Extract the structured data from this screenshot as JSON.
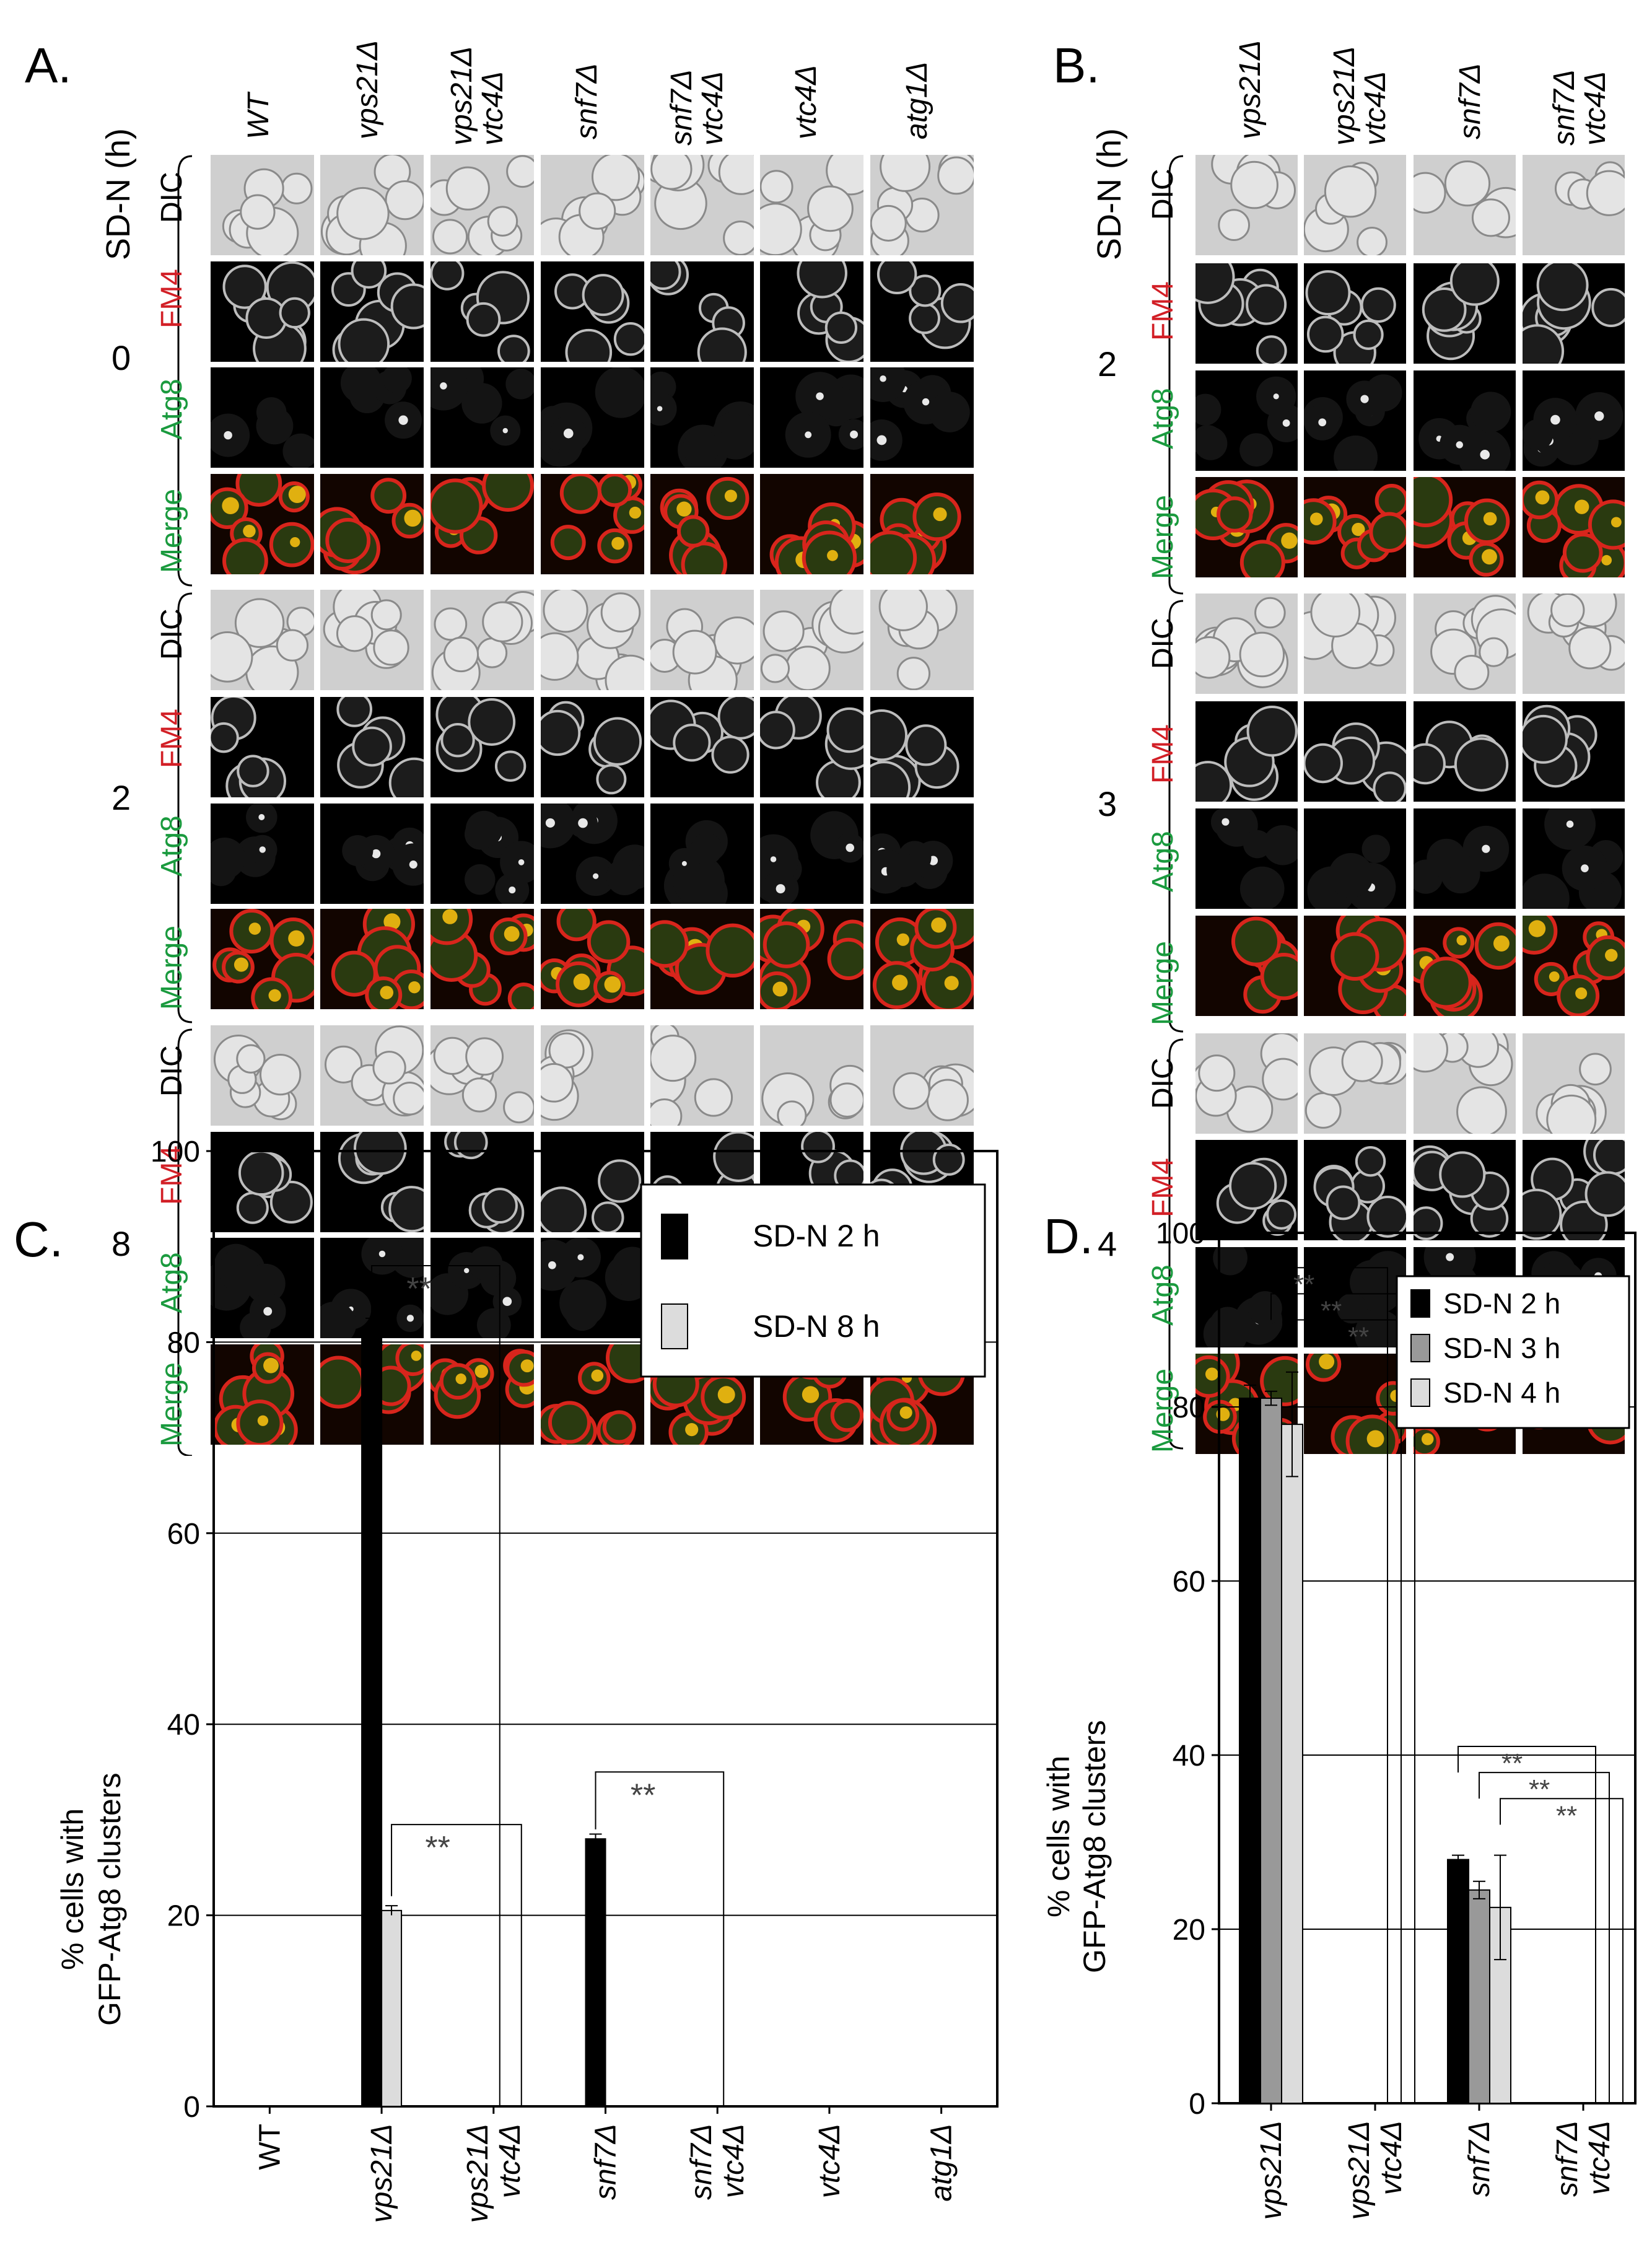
{
  "panel_a": {
    "letter": "A.",
    "axis_label": "SD-N (h)",
    "strains": [
      "WT",
      [
        "vps21Δ"
      ],
      [
        "vps21Δ",
        "vtc4Δ"
      ],
      [
        "snf7Δ"
      ],
      [
        "snf7Δ",
        "vtc4Δ"
      ],
      [
        "vtc4Δ"
      ],
      [
        "atg1Δ"
      ]
    ],
    "strain_labels": {
      "s1": "WT",
      "s2": "vps21Δ",
      "s3a": "vps21Δ",
      "s3b": "vtc4Δ",
      "s4": "snf7Δ",
      "s5a": "snf7Δ",
      "s5b": "vtc4Δ",
      "s6": "vtc4Δ",
      "s7": "atg1Δ"
    },
    "time_points": [
      "0",
      "2",
      "8"
    ]
  },
  "panel_b": {
    "letter": "B.",
    "axis_label": "SD-N (h)",
    "strain_labels": {
      "s1": "vps21Δ",
      "s2a": "vps21Δ",
      "s2b": "vtc4Δ",
      "s3": "snf7Δ",
      "s4a": "snf7Δ",
      "s4b": "vtc4Δ"
    },
    "time_points": [
      "2",
      "3",
      "4"
    ]
  },
  "rows": {
    "dic": "DIC",
    "fm4": "FM4",
    "atg8": "Atg8",
    "merge": "Merge"
  },
  "colors": {
    "fm4_label": "#d21f26",
    "atg8_label": "#1a9a3e",
    "merge_label": "#1a9a3e",
    "bar_black": "#000000",
    "bar_gray": "#999999",
    "bar_light": "#dcdcdc"
  },
  "panel_c": {
    "letter": "C.",
    "ylabel_line1": "% cells with",
    "ylabel_line2": "GFP-Atg8 clusters",
    "yticks": [
      "0",
      "20",
      "40",
      "60",
      "80",
      "100"
    ],
    "legend": [
      "SD-N 2 h",
      "SD-N 8 h"
    ],
    "significance": "**",
    "xtick_labels": {
      "t1": "WT",
      "t2": "vps21Δ",
      "t3a": "vps21Δ",
      "t3b": "vtc4Δ",
      "t4": "snf7Δ",
      "t5a": "snf7Δ",
      "t5b": "vtc4Δ",
      "t6": "vtc4Δ",
      "t7": "atg1Δ"
    }
  },
  "panel_d": {
    "letter": "D.",
    "ylabel_line1": "% cells with",
    "ylabel_line2": "GFP-Atg8 clusters",
    "yticks": [
      "0",
      "20",
      "40",
      "60",
      "80",
      "100"
    ],
    "legend": [
      "SD-N 2 h",
      "SD-N 3 h",
      "SD-N 4 h"
    ],
    "significance": "**",
    "xtick_labels": {
      "t1": "vps21Δ",
      "t2a": "vps21Δ",
      "t2b": "vtc4Δ",
      "t3": "snf7Δ",
      "t4a": "snf7Δ",
      "t4b": "vtc4Δ"
    }
  },
  "chart_data": [
    {
      "type": "bar",
      "categories": [
        "WT",
        "vps21Δ",
        "vps21Δ vtc4Δ",
        "snf7Δ",
        "snf7Δ vtc4Δ",
        "vtc4Δ",
        "atg1Δ"
      ],
      "series": [
        {
          "name": "SD-N 2 h",
          "values": [
            0,
            81,
            0,
            28,
            0,
            0,
            0
          ],
          "errors": [
            0,
            1.5,
            0,
            0.5,
            0,
            0,
            0
          ]
        },
        {
          "name": "SD-N 8 h",
          "values": [
            0,
            20.5,
            0,
            0,
            0,
            0,
            0
          ],
          "errors": [
            0,
            0.5,
            0,
            0,
            0,
            0,
            0
          ]
        }
      ],
      "ylabel": "% cells with GFP-Atg8 clusters",
      "ylim": [
        0,
        100
      ],
      "grid": true,
      "legend_position": "top-right"
    },
    {
      "type": "bar",
      "categories": [
        "vps21Δ",
        "vps21Δ vtc4Δ",
        "snf7Δ",
        "snf7Δ vtc4Δ"
      ],
      "series": [
        {
          "name": "SD-N 2 h",
          "values": [
            81,
            0,
            28,
            0
          ],
          "errors": [
            1.5,
            0,
            0.5,
            0
          ]
        },
        {
          "name": "SD-N 3 h",
          "values": [
            81,
            0,
            24.5,
            0
          ],
          "errors": [
            0.8,
            0,
            1,
            0
          ]
        },
        {
          "name": "SD-N 4 h",
          "values": [
            78,
            0,
            22.5,
            0
          ],
          "errors": [
            6,
            0,
            6,
            0
          ]
        }
      ],
      "ylabel": "% cells with GFP-Atg8 clusters",
      "ylim": [
        0,
        100
      ],
      "grid": true,
      "legend_position": "top-right"
    }
  ]
}
